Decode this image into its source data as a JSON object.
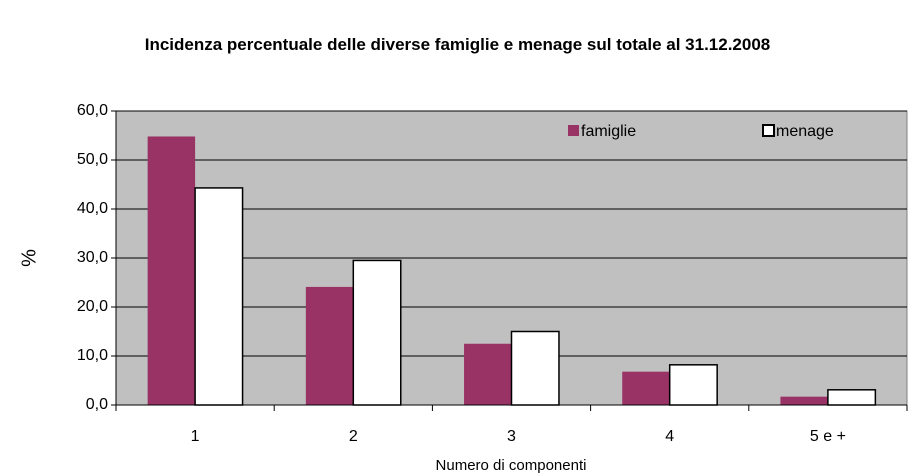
{
  "chart_data": {
    "type": "bar",
    "title": "Incidenza percentuale delle diverse famiglie e menage sul totale al 31.12.2008",
    "x_label": "Numero di componenti",
    "y_label": "%",
    "categories": [
      "1",
      "2",
      "3",
      "4",
      "5 e +"
    ],
    "series": [
      {
        "name": "famiglie",
        "color": "#993366",
        "values": [
          54.8,
          24.1,
          12.5,
          6.8,
          1.7
        ]
      },
      {
        "name": "menage",
        "color": "#ffffff",
        "values": [
          44.3,
          29.5,
          15.0,
          8.2,
          3.1
        ]
      }
    ],
    "ylim": [
      0,
      60
    ],
    "yticks": [
      {
        "value": 0,
        "label": "0,0"
      },
      {
        "value": 10,
        "label": "10,0"
      },
      {
        "value": 20,
        "label": "20,0"
      },
      {
        "value": 30,
        "label": "30,0"
      },
      {
        "value": 40,
        "label": "40,0"
      },
      {
        "value": 50,
        "label": "50,0"
      },
      {
        "value": 60,
        "label": "60,0"
      }
    ],
    "grid": true,
    "legend": "top-right",
    "plot_background": "#c0c0c0"
  }
}
